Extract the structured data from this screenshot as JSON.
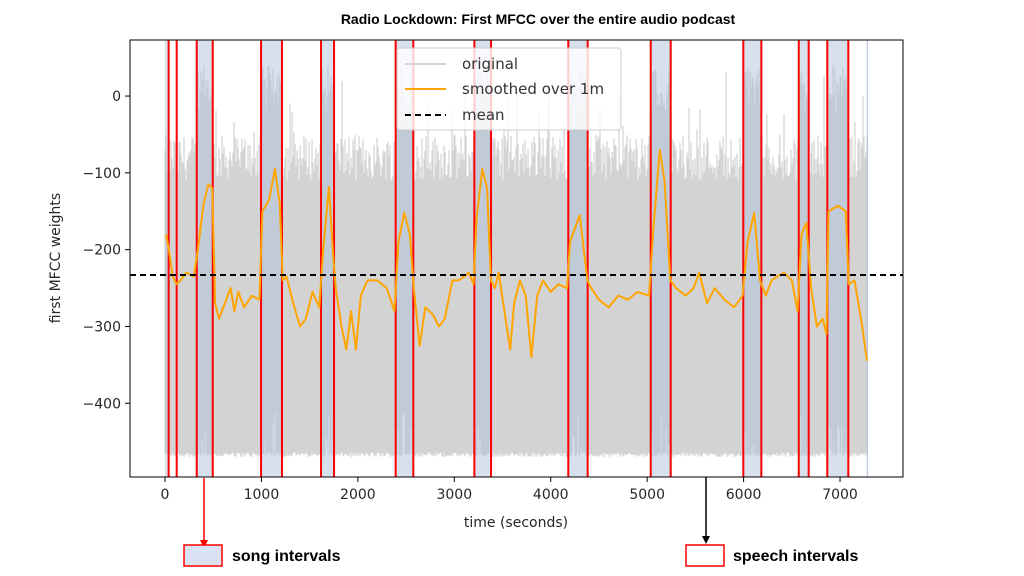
{
  "chart_data": {
    "type": "line",
    "title": "Radio Lockdown: First MFCC over the entire audio podcast",
    "xlabel": "time (seconds)",
    "ylabel": "first MFCC weights",
    "xlim": [
      -363,
      7653
    ],
    "ylim": [
      -496,
      73
    ],
    "xticks": [
      0,
      1000,
      2000,
      3000,
      4000,
      5000,
      6000,
      7000
    ],
    "yticks": [
      0,
      -100,
      -200,
      -300,
      -400
    ],
    "grid": false,
    "legend": {
      "placement": "top-center",
      "entries": [
        "original",
        "smoothed over 1m",
        "mean"
      ]
    },
    "colors": {
      "original": "#d3d3d3",
      "smoothed": "#ffa500",
      "mean": "#000000",
      "song_fill": "#b0c4de",
      "interval_border": "#ff0000"
    },
    "mean": -233,
    "original_envelope": {
      "lower": -470,
      "upper_typical": -80,
      "upper_in_songs": 10,
      "end_time": 7283
    },
    "song_intervals": [
      [
        329,
        495
      ],
      [
        996,
        1213
      ],
      [
        1618,
        1753
      ],
      [
        2392,
        2575
      ],
      [
        3208,
        3381
      ],
      [
        4182,
        4383
      ],
      [
        5037,
        5244
      ],
      [
        5997,
        6184
      ],
      [
        6572,
        6675
      ],
      [
        6868,
        7086
      ]
    ],
    "speech_intervals": [
      [
        38,
        121
      ]
    ],
    "smoothed": {
      "x": [
        10,
        40,
        80,
        120,
        160,
        220,
        300,
        340,
        400,
        450,
        490,
        520,
        560,
        620,
        680,
        720,
        760,
        820,
        900,
        980,
        1010,
        1080,
        1140,
        1190,
        1220,
        1260,
        1330,
        1400,
        1460,
        1530,
        1600,
        1640,
        1700,
        1740,
        1770,
        1830,
        1880,
        1930,
        1980,
        2030,
        2100,
        2200,
        2300,
        2380,
        2420,
        2480,
        2540,
        2580,
        2640,
        2700,
        2780,
        2840,
        2900,
        2980,
        3050,
        3150,
        3200,
        3230,
        3290,
        3340,
        3380,
        3420,
        3460,
        3520,
        3580,
        3620,
        3680,
        3740,
        3800,
        3860,
        3920,
        4000,
        4080,
        4170,
        4200,
        4300,
        4380,
        4420,
        4500,
        4600,
        4700,
        4800,
        4900,
        5020,
        5060,
        5130,
        5180,
        5240,
        5300,
        5400,
        5480,
        5540,
        5620,
        5700,
        5800,
        5900,
        5990,
        6040,
        6110,
        6170,
        6230,
        6290,
        6350,
        6420,
        6500,
        6560,
        6600,
        6650,
        6700,
        6760,
        6820,
        6860,
        6880,
        6980,
        7060,
        7090,
        7150,
        7230,
        7280
      ],
      "y": [
        -180,
        -200,
        -235,
        -245,
        -240,
        -230,
        -235,
        -200,
        -140,
        -115,
        -120,
        -270,
        -290,
        -270,
        -250,
        -280,
        -255,
        -275,
        -260,
        -265,
        -150,
        -135,
        -95,
        -140,
        -240,
        -235,
        -270,
        -300,
        -290,
        -255,
        -275,
        -200,
        -118,
        -200,
        -250,
        -300,
        -330,
        -280,
        -330,
        -260,
        -240,
        -240,
        -250,
        -280,
        -190,
        -152,
        -180,
        -250,
        -325,
        -275,
        -285,
        -300,
        -290,
        -240,
        -240,
        -230,
        -245,
        -160,
        -95,
        -120,
        -240,
        -250,
        -230,
        -280,
        -330,
        -270,
        -240,
        -260,
        -340,
        -260,
        -240,
        -255,
        -245,
        -250,
        -190,
        -155,
        -240,
        -250,
        -265,
        -275,
        -260,
        -265,
        -255,
        -260,
        -180,
        -70,
        -110,
        -240,
        -250,
        -260,
        -250,
        -230,
        -270,
        -250,
        -265,
        -275,
        -260,
        -190,
        -152,
        -240,
        -260,
        -240,
        -235,
        -230,
        -240,
        -280,
        -180,
        -165,
        -250,
        -300,
        -290,
        -310,
        -150,
        -143,
        -150,
        -245,
        -240,
        -300,
        -345
      ]
    }
  },
  "annotations": {
    "song_label": "song intervals",
    "speech_label": "speech intervals"
  }
}
